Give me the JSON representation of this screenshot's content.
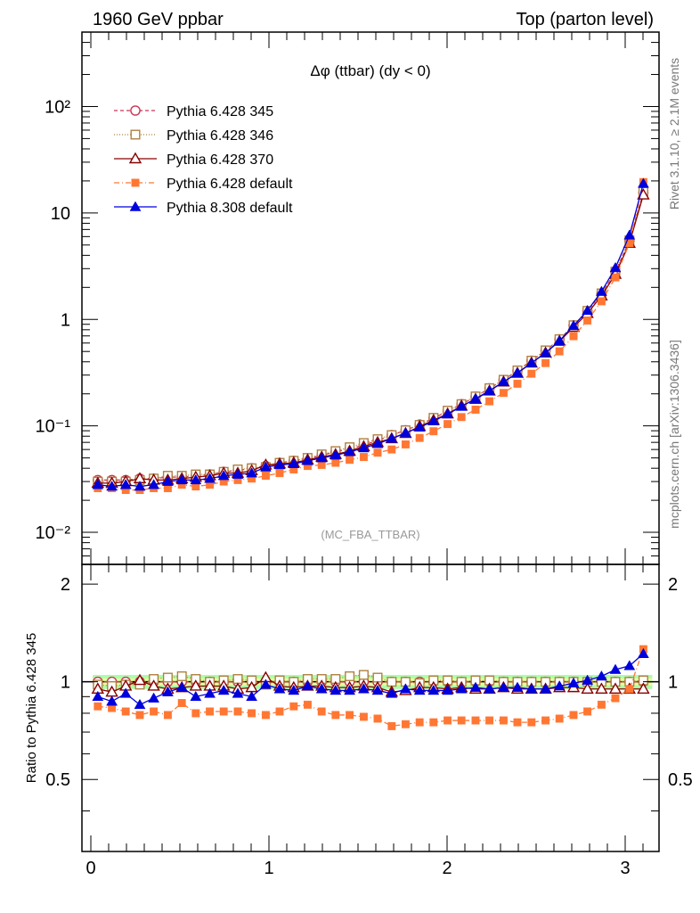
{
  "header": {
    "left": "1960 GeV ppbar",
    "right": "Top (parton level)"
  },
  "plot_title": "Δφ (ttbar) (dy < 0)",
  "analysis_tag": "(MC_FBA_TTBAR)",
  "side_texts": {
    "rivet": "Rivet 3.1.10, ≥ 2.1M events",
    "mcplots": "mcplots.cern.ch [arXiv:1306.3436]"
  },
  "ratio_ylabel": "Ratio to Pythia 6.428 345",
  "main_ytick_labels": [
    {
      "value": 100,
      "label": "10²"
    },
    {
      "value": 10,
      "label": "10"
    },
    {
      "value": 1,
      "label": "1"
    },
    {
      "value": 0.1,
      "label": "10⁻¹"
    },
    {
      "value": 0.01,
      "label": "10⁻²"
    }
  ],
  "ratio_ytick_labels": [
    {
      "value": 2,
      "label": "2"
    },
    {
      "value": 1,
      "label": "1"
    },
    {
      "value": 0.5,
      "label": "0.5"
    }
  ],
  "xtick_labels": [
    {
      "value": 0,
      "label": "0"
    },
    {
      "value": 1,
      "label": "1"
    },
    {
      "value": 2,
      "label": "2"
    },
    {
      "value": 3,
      "label": "3"
    }
  ],
  "chart_data": {
    "type": "line",
    "x_range": [
      -0.05,
      3.19
    ],
    "main_y_range": [
      0.005,
      500
    ],
    "main_y_scale": "log",
    "ratio_y_range": [
      0.3,
      2.3
    ],
    "ratio_y_scale": "log",
    "legend_position": "top-left",
    "reference_band": {
      "low": 0.95,
      "high": 1.05,
      "color": "#aaffaa",
      "inner_color": "#ffff99"
    },
    "x": [
      0.039,
      0.118,
      0.196,
      0.275,
      0.353,
      0.432,
      0.511,
      0.589,
      0.668,
      0.746,
      0.825,
      0.903,
      0.982,
      1.06,
      1.139,
      1.217,
      1.296,
      1.374,
      1.453,
      1.532,
      1.61,
      1.689,
      1.767,
      1.846,
      1.924,
      2.003,
      2.081,
      2.16,
      2.238,
      2.317,
      2.395,
      2.474,
      2.553,
      2.631,
      2.71,
      2.788,
      2.867,
      2.945,
      3.024,
      3.102
    ],
    "series": [
      {
        "name": "Pythia 6.428 345",
        "color": "#cc3355",
        "marker": "open-circle",
        "dash": "4,3",
        "values": [
          0.031,
          0.031,
          0.031,
          0.032,
          0.032,
          0.033,
          0.033,
          0.034,
          0.035,
          0.037,
          0.038,
          0.04,
          0.042,
          0.045,
          0.047,
          0.049,
          0.053,
          0.057,
          0.061,
          0.066,
          0.073,
          0.082,
          0.091,
          0.103,
          0.118,
          0.137,
          0.16,
          0.188,
          0.225,
          0.27,
          0.33,
          0.41,
          0.51,
          0.65,
          0.88,
          1.2,
          1.75,
          2.8,
          5.5,
          15.5
        ],
        "ratio": [
          1,
          1,
          1,
          1,
          1,
          1,
          1,
          1,
          1,
          1,
          1,
          1,
          1,
          1,
          1,
          1,
          1,
          1,
          1,
          1,
          1,
          1,
          1,
          1,
          1,
          1,
          1,
          1,
          1,
          1,
          1,
          1,
          1,
          1,
          1,
          1,
          1,
          1,
          1,
          1
        ]
      },
      {
        "name": "Pythia 6.428 346",
        "color": "#b08040",
        "marker": "open-square",
        "dash": "1,2",
        "values": [
          0.03,
          0.03,
          0.03,
          0.031,
          0.032,
          0.034,
          0.034,
          0.035,
          0.035,
          0.037,
          0.039,
          0.04,
          0.041,
          0.045,
          0.047,
          0.05,
          0.054,
          0.058,
          0.063,
          0.069,
          0.075,
          0.082,
          0.091,
          0.102,
          0.119,
          0.139,
          0.16,
          0.189,
          0.226,
          0.271,
          0.332,
          0.41,
          0.512,
          0.652,
          0.882,
          1.203,
          1.757,
          2.81,
          5.53,
          15.8
        ],
        "ratio": [
          0.98,
          0.97,
          0.98,
          0.98,
          1.02,
          1.03,
          1.04,
          1.02,
          1.0,
          1.01,
          1.02,
          1.01,
          0.98,
          1.01,
          1.0,
          1.02,
          1.02,
          1.02,
          1.04,
          1.05,
          1.03,
          1.0,
          1.0,
          0.99,
          1.01,
          1.01,
          1.0,
          1.01,
          1.01,
          1.0,
          1.0,
          1.0,
          1.0,
          1.0,
          1.0,
          1.0,
          1.0,
          1.0,
          1.0,
          1.01
        ]
      },
      {
        "name": "Pythia 6.428 370",
        "color": "#880000",
        "marker": "open-triangle",
        "dash": "",
        "values": [
          0.029,
          0.029,
          0.03,
          0.032,
          0.031,
          0.031,
          0.032,
          0.033,
          0.034,
          0.036,
          0.036,
          0.038,
          0.043,
          0.044,
          0.045,
          0.048,
          0.051,
          0.054,
          0.058,
          0.064,
          0.07,
          0.076,
          0.085,
          0.099,
          0.113,
          0.13,
          0.154,
          0.178,
          0.213,
          0.259,
          0.313,
          0.39,
          0.485,
          0.624,
          0.845,
          1.14,
          1.665,
          2.66,
          5.2,
          14.8
        ],
        "ratio": [
          0.95,
          0.93,
          0.97,
          1.01,
          0.97,
          0.95,
          0.96,
          0.97,
          0.97,
          0.97,
          0.95,
          0.96,
          1.03,
          0.97,
          0.96,
          0.97,
          0.97,
          0.96,
          0.96,
          0.97,
          0.96,
          0.93,
          0.94,
          0.96,
          0.96,
          0.95,
          0.96,
          0.95,
          0.95,
          0.96,
          0.95,
          0.95,
          0.95,
          0.96,
          0.96,
          0.95,
          0.95,
          0.95,
          0.95,
          0.95
        ]
      },
      {
        "name": "Pythia 6.428 default",
        "color": "#ff7733",
        "marker": "filled-square",
        "dash": "6,3,1,3",
        "values": [
          0.026,
          0.026,
          0.025,
          0.025,
          0.026,
          0.026,
          0.028,
          0.027,
          0.028,
          0.03,
          0.031,
          0.032,
          0.034,
          0.036,
          0.039,
          0.042,
          0.043,
          0.045,
          0.048,
          0.051,
          0.056,
          0.06,
          0.067,
          0.077,
          0.089,
          0.104,
          0.121,
          0.142,
          0.17,
          0.204,
          0.249,
          0.309,
          0.389,
          0.501,
          0.695,
          0.977,
          1.48,
          2.48,
          5.2,
          19.5
        ],
        "ratio": [
          0.84,
          0.83,
          0.81,
          0.79,
          0.81,
          0.79,
          0.86,
          0.8,
          0.81,
          0.81,
          0.81,
          0.8,
          0.79,
          0.81,
          0.84,
          0.85,
          0.81,
          0.79,
          0.79,
          0.78,
          0.77,
          0.73,
          0.74,
          0.75,
          0.75,
          0.76,
          0.76,
          0.76,
          0.76,
          0.76,
          0.75,
          0.75,
          0.76,
          0.77,
          0.79,
          0.81,
          0.85,
          0.89,
          0.95,
          1.26
        ]
      },
      {
        "name": "Pythia 8.308 default",
        "color": "#0000dd",
        "marker": "filled-triangle",
        "dash": "",
        "values": [
          0.028,
          0.027,
          0.028,
          0.027,
          0.028,
          0.03,
          0.031,
          0.031,
          0.032,
          0.034,
          0.035,
          0.036,
          0.041,
          0.043,
          0.044,
          0.047,
          0.05,
          0.053,
          0.057,
          0.062,
          0.068,
          0.076,
          0.086,
          0.097,
          0.111,
          0.129,
          0.152,
          0.18,
          0.214,
          0.259,
          0.315,
          0.39,
          0.485,
          0.63,
          0.872,
          1.21,
          1.825,
          3.05,
          6.18,
          18.9
        ],
        "ratio": [
          0.9,
          0.87,
          0.92,
          0.85,
          0.89,
          0.93,
          0.96,
          0.9,
          0.92,
          0.94,
          0.92,
          0.9,
          0.98,
          0.95,
          0.94,
          0.97,
          0.95,
          0.94,
          0.94,
          0.95,
          0.94,
          0.92,
          0.95,
          0.94,
          0.94,
          0.94,
          0.95,
          0.96,
          0.95,
          0.96,
          0.96,
          0.95,
          0.95,
          0.97,
          0.99,
          1.01,
          1.04,
          1.09,
          1.12,
          1.22
        ]
      }
    ]
  }
}
